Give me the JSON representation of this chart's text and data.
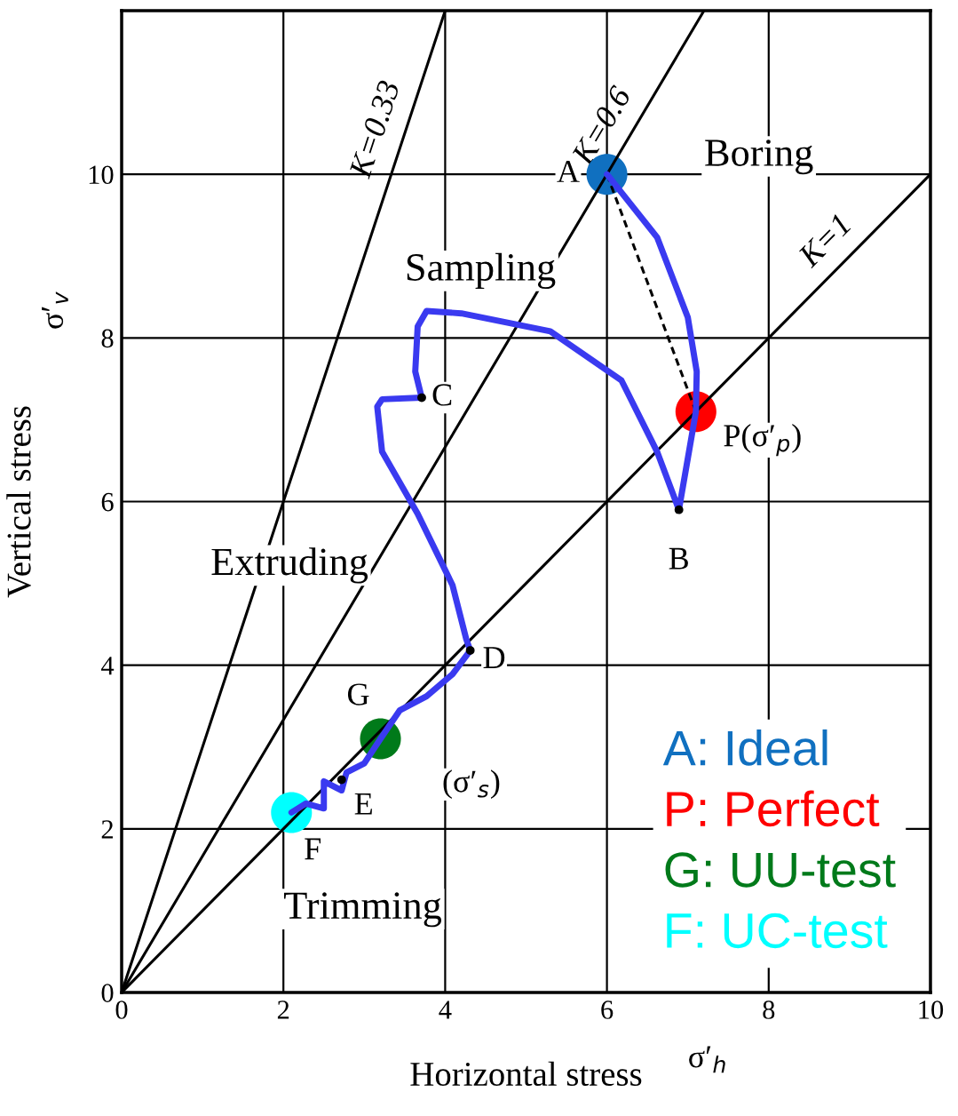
{
  "chart_data": {
    "type": "line",
    "xlabel": "Horizontal stress",
    "ylabel": "Vertical stress",
    "xlim": [
      0,
      10
    ],
    "ylim": [
      0,
      12
    ],
    "xticks": [
      0,
      2,
      4,
      6,
      8,
      10
    ],
    "yticks": [
      0,
      2,
      4,
      6,
      8,
      10
    ],
    "grid": true,
    "legend": "bottom right",
    "series": [
      {
        "name": "K=0.33",
        "color": "#000000",
        "x": [
          0,
          4
        ],
        "values": [
          0,
          12
        ]
      },
      {
        "name": "K=0.6",
        "color": "#000000",
        "x": [
          0,
          7.2
        ],
        "values": [
          0,
          12
        ]
      },
      {
        "name": "K=1",
        "color": "#000000",
        "x": [
          0,
          10
        ],
        "values": [
          0,
          10
        ]
      },
      {
        "color": "#000000",
        "line_style": "dashed",
        "x": [
          6.0,
          7.1
        ],
        "values": [
          10.0,
          7.1
        ]
      },
      {
        "color": "#3a3af0",
        "x": [
          6.0,
          6.62,
          7.0,
          7.11,
          7.1,
          6.89,
          6.62,
          6.18,
          5.3,
          4.2,
          3.77,
          3.66,
          3.63,
          3.71,
          3.22,
          3.16,
          3.22,
          3.66,
          4.09,
          4.26,
          4.31,
          4.09,
          3.77,
          3.44,
          3.2,
          3.0,
          2.78,
          2.72,
          2.5,
          2.5,
          2.28,
          2.1
        ],
        "values": [
          10.0,
          9.23,
          8.25,
          7.59,
          7.1,
          5.9,
          6.61,
          7.48,
          8.08,
          8.3,
          8.33,
          8.14,
          7.59,
          7.27,
          7.25,
          7.16,
          6.61,
          5.85,
          4.98,
          4.32,
          4.18,
          3.89,
          3.62,
          3.45,
          3.1,
          2.8,
          2.69,
          2.47,
          2.58,
          2.25,
          2.31,
          2.2
        ]
      },
      {
        "type": "scatter",
        "color": "#000000",
        "x": [
          6.89,
          3.71,
          4.31,
          2.72
        ],
        "values": [
          5.9,
          7.27,
          4.18,
          2.6
        ]
      },
      {
        "name": "A: Ideal",
        "type": "scatter",
        "color": "#1070c0",
        "x": [
          6.0
        ],
        "values": [
          10.0
        ]
      },
      {
        "name": "P: Perfect",
        "type": "scatter",
        "color": "#ff0000",
        "x": [
          7.1
        ],
        "values": [
          7.1
        ]
      },
      {
        "name": "G: UU-test",
        "type": "scatter",
        "color": "#007a1a",
        "x": [
          3.2
        ],
        "values": [
          3.1
        ]
      },
      {
        "name": "F: UC-test",
        "type": "scatter",
        "color": "#00ffff",
        "x": [
          2.1
        ],
        "values": [
          2.2
        ]
      }
    ],
    "annotations": [
      {
        "text": "A",
        "x": 6.0,
        "y": 10.0
      },
      {
        "text": "B",
        "x": 6.89,
        "y": 5.9
      },
      {
        "text": "C",
        "x": 3.71,
        "y": 7.27
      },
      {
        "text": "D",
        "x": 4.31,
        "y": 4.18
      },
      {
        "text": "E",
        "x": 2.72,
        "y": 2.6
      },
      {
        "text": "F",
        "x": 2.1,
        "y": 2.2
      },
      {
        "text": "G",
        "x": 3.2,
        "y": 3.1
      },
      {
        "text": "P(σ′$_{p}$)",
        "x": 7.1,
        "y": 7.1
      },
      {
        "text": "(σ′$_{s}$)",
        "x": 3.2,
        "y": 3.1
      },
      "Boring",
      "Sampling",
      "Extruding",
      "Trimming",
      "σ′$_{v}$",
      "σ′$_{h}$"
    ]
  }
}
